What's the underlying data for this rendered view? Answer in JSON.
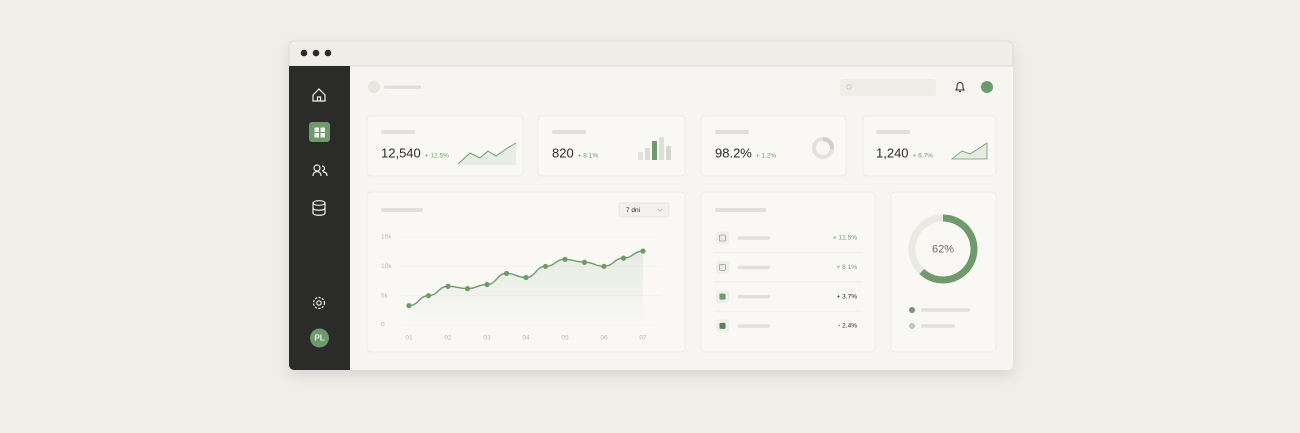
{
  "window": {
    "avatar": "PL"
  },
  "kpis": [
    {
      "value": "12,540",
      "change": "+ 12.5%"
    },
    {
      "value": "820",
      "change": "+ 8.1%"
    },
    {
      "value": "98.2%",
      "change": "+ 1.2%"
    },
    {
      "value": "1,240",
      "change": "+ 6.7%"
    }
  ],
  "line_chart": {
    "type": "line",
    "range": "7 dni",
    "categories": [
      "01",
      null,
      "02",
      null,
      "03",
      null,
      "04",
      null,
      "05",
      null,
      "06",
      null,
      "07"
    ],
    "values": [
      3300,
      5000,
      6600,
      6200,
      6900,
      8800,
      8100,
      10000,
      11200,
      10700,
      10000,
      11400,
      12600
    ],
    "color": "#6f9a6c",
    "ylim": [
      0,
      15000
    ],
    "yticks": [
      0,
      {
        "value": 5000,
        "label": "5k"
      },
      {
        "value": 10000,
        "label": "10k"
      },
      {
        "value": 15000,
        "label": "15k"
      }
    ]
  },
  "list": {
    "items": [
      {
        "change": "+ 12.5%"
      },
      {
        "change": "+ 8.1%"
      },
      {
        "change": "+ 3.7%"
      },
      {
        "change": "- 2.4%"
      }
    ]
  },
  "donut": {
    "type": "pie",
    "values": [
      62
    ],
    "value_labels": [
      "62%"
    ],
    "color": "#6f9a6c"
  }
}
